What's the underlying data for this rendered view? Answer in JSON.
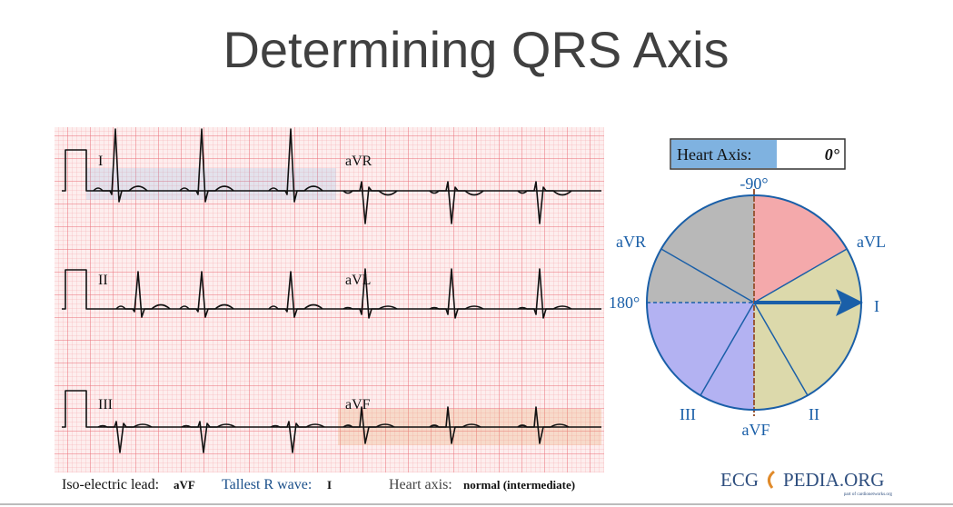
{
  "title": "Determining QRS Axis",
  "ecg": {
    "leads": [
      "I",
      "aVR",
      "II",
      "aVL",
      "III",
      "aVF"
    ]
  },
  "caption": {
    "iso_label": "Iso-electric lead:",
    "iso_value": "aVF",
    "tallest_label": "Tallest R wave:",
    "tallest_value": "I",
    "axis_label": "Heart axis:",
    "axis_value": "normal (intermediate)"
  },
  "axis_diagram": {
    "readout_label": "Heart Axis:",
    "readout_value": "0°",
    "labels": {
      "top": "-90°",
      "avr": "aVR",
      "avl": "aVL",
      "left": "180°",
      "right": "I",
      "iii": "III",
      "avf": "aVF",
      "ii": "II"
    }
  },
  "logo": {
    "left": "ECG",
    "right": "PEDIA.ORG",
    "tagline": "part of cardionetworks.org"
  }
}
